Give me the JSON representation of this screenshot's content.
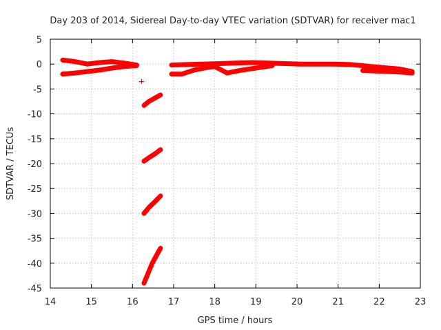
{
  "chart_data": {
    "type": "scatter",
    "title": "Day 203 of 2014, Sidereal Day-to-day VTEC variation (SDTVAR) for receiver mac1",
    "xlabel": "GPS time / hours",
    "ylabel": "SDTVAR / TECUs",
    "xlim": [
      14,
      23
    ],
    "ylim": [
      -45,
      5
    ],
    "xticks": [
      14,
      15,
      16,
      17,
      18,
      19,
      20,
      21,
      22,
      23
    ],
    "yticks": [
      5,
      0,
      -5,
      -10,
      -15,
      -20,
      -25,
      -30,
      -35,
      -40,
      -45
    ],
    "grid": true,
    "marker": "+",
    "color": "#ff0000",
    "series": [
      {
        "name": "band-upper-early",
        "x": [
          14.3,
          14.6,
          14.9,
          15.2,
          15.5,
          15.8,
          16.1
        ],
        "y": [
          0.8,
          0.5,
          0.0,
          0.3,
          0.5,
          0.2,
          -0.2
        ]
      },
      {
        "name": "band-lower-early",
        "x": [
          14.3,
          14.6,
          14.9,
          15.2,
          15.5,
          15.8,
          16.1
        ],
        "y": [
          -2.0,
          -1.8,
          -1.5,
          -1.2,
          -0.8,
          -0.5,
          -0.3
        ]
      },
      {
        "name": "outlier",
        "x": [
          16.22
        ],
        "y": [
          -3.5
        ]
      },
      {
        "name": "segment-1",
        "x": [
          16.28,
          16.4,
          16.55,
          16.68
        ],
        "y": [
          -8.3,
          -7.5,
          -6.8,
          -6.2
        ]
      },
      {
        "name": "segment-2",
        "x": [
          16.28,
          16.4,
          16.55,
          16.68
        ],
        "y": [
          -19.5,
          -18.8,
          -18.0,
          -17.2
        ]
      },
      {
        "name": "segment-3",
        "x": [
          16.28,
          16.4,
          16.55,
          16.68
        ],
        "y": [
          -30.0,
          -28.8,
          -27.6,
          -26.5
        ]
      },
      {
        "name": "segment-4",
        "x": [
          16.28,
          16.38,
          16.48,
          16.58,
          16.68
        ],
        "y": [
          -44.0,
          -42.0,
          -40.0,
          -38.5,
          -37.0
        ]
      },
      {
        "name": "band-late-upper",
        "x": [
          16.95,
          17.3,
          17.7,
          18.1,
          18.5,
          18.9,
          19.3,
          19.7,
          20.1,
          20.5,
          20.9,
          21.3,
          21.7,
          22.1,
          22.5,
          22.8
        ],
        "y": [
          -0.2,
          -0.1,
          0.0,
          0.1,
          0.2,
          0.3,
          0.2,
          0.1,
          0.0,
          0.0,
          0.0,
          -0.1,
          -0.4,
          -0.7,
          -1.0,
          -1.5
        ]
      },
      {
        "name": "band-late-lower",
        "x": [
          16.95,
          17.2,
          17.5,
          17.8,
          18.0,
          18.3,
          18.6,
          19.0,
          19.4
        ],
        "y": [
          -2.0,
          -2.0,
          -1.2,
          -0.7,
          -0.5,
          -1.8,
          -1.3,
          -0.8,
          -0.3
        ]
      },
      {
        "name": "band-late-right",
        "x": [
          21.6,
          21.9,
          22.2,
          22.5,
          22.8
        ],
        "y": [
          -1.3,
          -1.4,
          -1.5,
          -1.6,
          -1.8
        ]
      }
    ]
  }
}
